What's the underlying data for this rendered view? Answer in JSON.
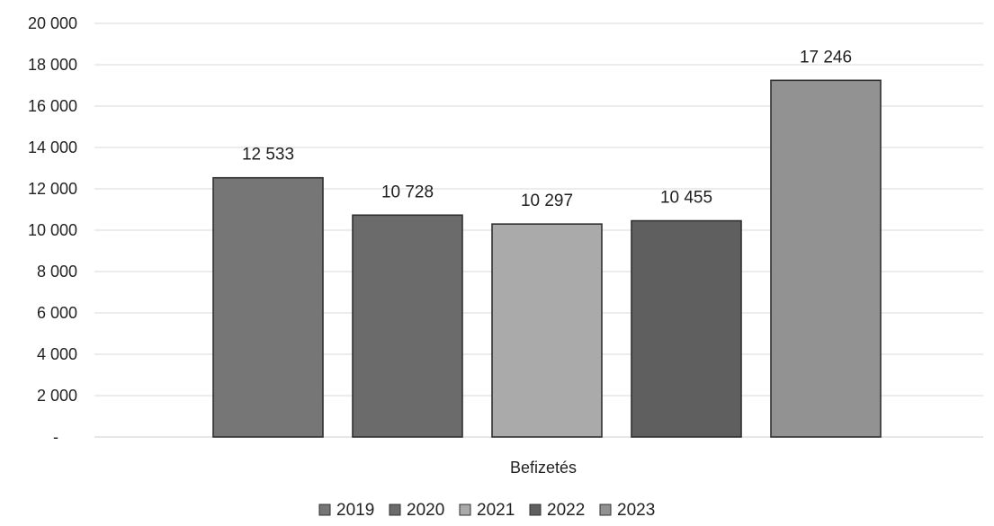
{
  "chart_data": {
    "type": "bar",
    "categories": [
      "Befizetés"
    ],
    "series": [
      {
        "name": "2019",
        "values": [
          12533
        ],
        "label": "12 533",
        "color": "#767676"
      },
      {
        "name": "2020",
        "values": [
          10728
        ],
        "label": "10 728",
        "color": "#6b6b6b"
      },
      {
        "name": "2021",
        "values": [
          10297
        ],
        "label": "10 297",
        "color": "#aaaaaa"
      },
      {
        "name": "2022",
        "values": [
          10455
        ],
        "label": "10 455",
        "color": "#5f5f5f"
      },
      {
        "name": "2023",
        "values": [
          17246
        ],
        "label": "17 246",
        "color": "#929292"
      }
    ],
    "ylim": [
      0,
      20000
    ],
    "yticks": [
      {
        "value": 20000,
        "label": "20 000"
      },
      {
        "value": 18000,
        "label": "18 000"
      },
      {
        "value": 16000,
        "label": "16 000"
      },
      {
        "value": 14000,
        "label": "14 000"
      },
      {
        "value": 12000,
        "label": "12 000"
      },
      {
        "value": 10000,
        "label": "10 000"
      },
      {
        "value": 8000,
        "label": "8 000"
      },
      {
        "value": 6000,
        "label": "6 000"
      },
      {
        "value": 4000,
        "label": "4 000"
      },
      {
        "value": 2000,
        "label": "2 000"
      },
      {
        "value": 0,
        "label": "-"
      }
    ],
    "grid": true,
    "legend_position": "bottom",
    "colors": {
      "grid": "#d8d8d8",
      "bar_border": "#303030",
      "axis": "#cfcfcf"
    }
  }
}
